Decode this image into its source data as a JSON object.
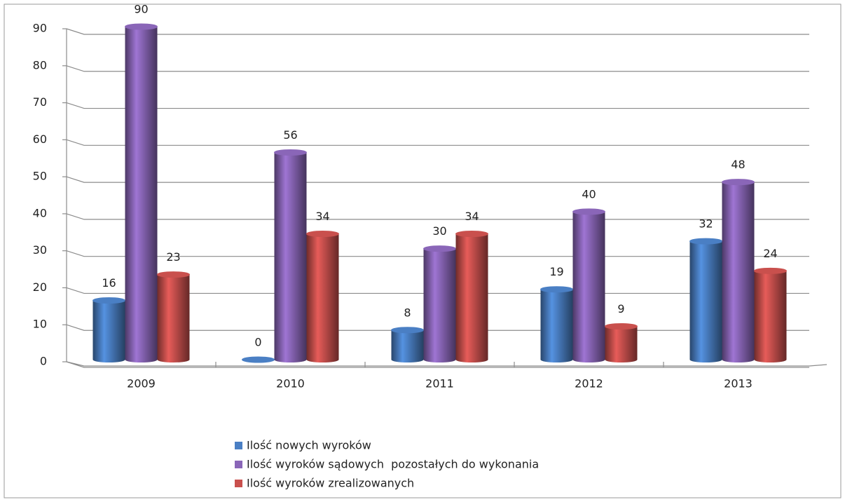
{
  "chart_data": {
    "type": "bar",
    "categories": [
      "2009",
      "2010",
      "2011",
      "2012",
      "2013"
    ],
    "series": [
      {
        "name": "Ilość nowych wyroków",
        "color": "#4a7fc4",
        "values": [
          16,
          0,
          8,
          19,
          32
        ]
      },
      {
        "name": "Ilość wyroków sądowych  pozostałych do wykonania",
        "color": "#8a66b8",
        "values": [
          90,
          56,
          30,
          40,
          48
        ]
      },
      {
        "name": "Ilość wyroków zrealizowanych",
        "color": "#c9504d",
        "values": [
          23,
          34,
          34,
          9,
          24
        ]
      }
    ],
    "ylim": [
      0,
      90
    ],
    "yticks": [
      0,
      10,
      20,
      30,
      40,
      50,
      60,
      70,
      80,
      90
    ],
    "grid": true,
    "legend": "bottom"
  }
}
